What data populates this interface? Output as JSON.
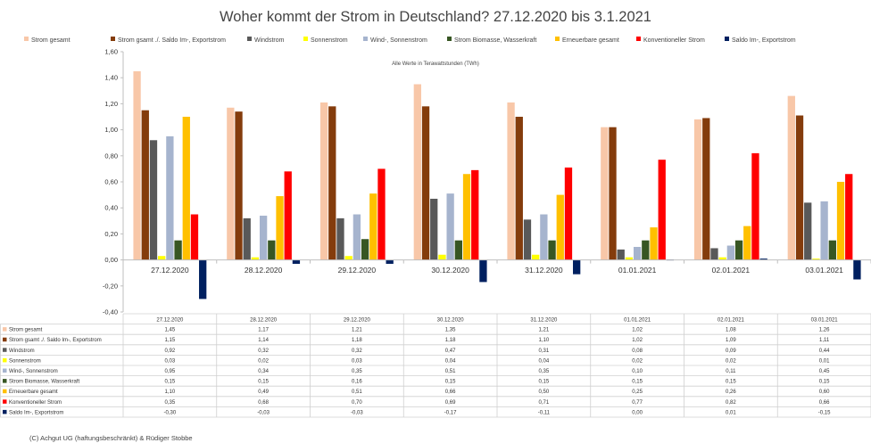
{
  "chart_data": {
    "type": "bar",
    "title": "Woher kommt der Strom in Deutschland? 27.12.2020 bis 3.1.2021",
    "annotation": "Alle Werte in Terawattstunden (TWh)",
    "categories": [
      "27.12.2020",
      "28.12.2020",
      "29.12.2020",
      "30.12.2020",
      "31.12.2020",
      "01.01.2021",
      "02.01.2021",
      "03.01.2021"
    ],
    "ylim": [
      -0.4,
      1.6
    ],
    "yticks": [
      "-0,40",
      "-0,20",
      "0,00",
      "0,20",
      "0,40",
      "0,60",
      "0,80",
      "1,00",
      "1,20",
      "1,40",
      "1,60"
    ],
    "grid": false,
    "legend_position": "top",
    "data_table": true,
    "series": [
      {
        "name": "Strom gesamt",
        "color": "#F8C7A8",
        "values": [
          1.45,
          1.17,
          1.21,
          1.35,
          1.21,
          1.02,
          1.08,
          1.26
        ],
        "labels": [
          "1,45",
          "1,17",
          "1,21",
          "1,35",
          "1,21",
          "1,02",
          "1,08",
          "1,26"
        ]
      },
      {
        "name": "Strom gsamt ./. Saldo Im-, Exportstrom",
        "color": "#843C0C",
        "values": [
          1.15,
          1.14,
          1.18,
          1.18,
          1.1,
          1.02,
          1.09,
          1.11
        ],
        "labels": [
          "1,15",
          "1,14",
          "1,18",
          "1,18",
          "1,10",
          "1,02",
          "1,09",
          "1,11"
        ]
      },
      {
        "name": "Windstrom",
        "color": "#595959",
        "values": [
          0.92,
          0.32,
          0.32,
          0.47,
          0.31,
          0.08,
          0.09,
          0.44
        ],
        "labels": [
          "0,92",
          "0,32",
          "0,32",
          "0,47",
          "0,31",
          "0,08",
          "0,09",
          "0,44"
        ]
      },
      {
        "name": "Sonnenstrom",
        "color": "#FFFF00",
        "values": [
          0.03,
          0.02,
          0.03,
          0.04,
          0.04,
          0.02,
          0.02,
          0.01
        ],
        "labels": [
          "0,03",
          "0,02",
          "0,03",
          "0,04",
          "0,04",
          "0,02",
          "0,02",
          "0,01"
        ]
      },
      {
        "name": "Wind-, Sonnenstrom",
        "color": "#A6B4CE",
        "values": [
          0.95,
          0.34,
          0.35,
          0.51,
          0.35,
          0.1,
          0.11,
          0.45
        ],
        "labels": [
          "0,95",
          "0,34",
          "0,35",
          "0,51",
          "0,35",
          "0,10",
          "0,11",
          "0,45"
        ]
      },
      {
        "name": "Strom Biomasse, Wasserkraft",
        "color": "#375623",
        "values": [
          0.15,
          0.15,
          0.16,
          0.15,
          0.15,
          0.15,
          0.15,
          0.15
        ],
        "labels": [
          "0,15",
          "0,15",
          "0,16",
          "0,15",
          "0,15",
          "0,15",
          "0,15",
          "0,15"
        ]
      },
      {
        "name": "Erneuerbare gesamt",
        "color": "#FFC000",
        "values": [
          1.1,
          0.49,
          0.51,
          0.66,
          0.5,
          0.25,
          0.26,
          0.6
        ],
        "labels": [
          "1,10",
          "0,49",
          "0,51",
          "0,66",
          "0,50",
          "0,25",
          "0,26",
          "0,60"
        ]
      },
      {
        "name": "Konventioneller Strom",
        "color": "#FF0000",
        "values": [
          0.35,
          0.68,
          0.7,
          0.69,
          0.71,
          0.77,
          0.82,
          0.66
        ],
        "labels": [
          "0,35",
          "0,68",
          "0,70",
          "0,69",
          "0,71",
          "0,77",
          "0,82",
          "0,66"
        ]
      },
      {
        "name": "Saldo Im-, Exportstrom",
        "color": "#002060",
        "values": [
          -0.3,
          -0.03,
          -0.03,
          -0.17,
          -0.11,
          0.0,
          0.01,
          -0.15
        ],
        "labels": [
          "-0,30",
          "-0,03",
          "-0,03",
          "-0,17",
          "-0,11",
          "0,00",
          "0,01",
          "-0,15"
        ]
      }
    ]
  },
  "footer": {
    "copyright": "(C) Achgut UG (haftungsbeschränkt) & Rüdiger Stobbe"
  }
}
